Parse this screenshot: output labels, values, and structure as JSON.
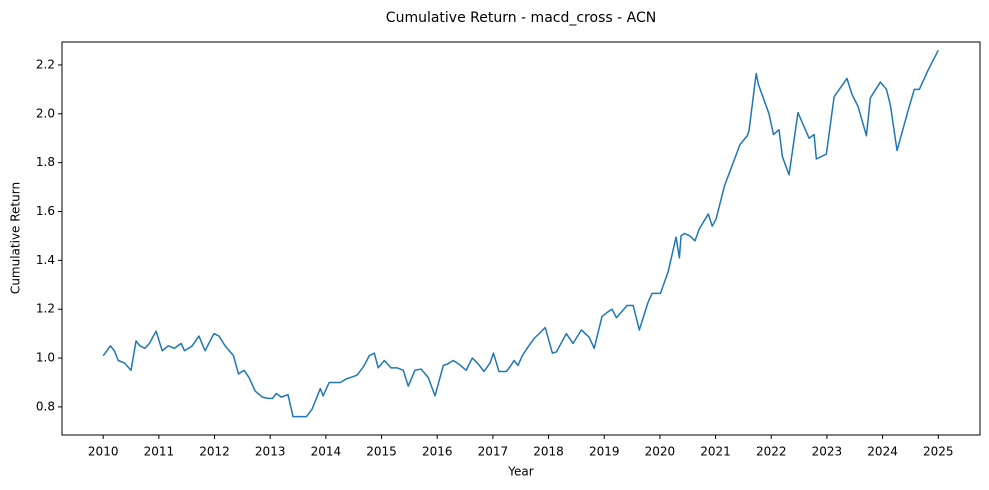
{
  "chart_data": {
    "type": "line",
    "title": "Cumulative Return - macd_cross - ACN",
    "x_label": "Year",
    "y_label": "Cumulative Return",
    "x": [
      2010.0,
      2010.13,
      2010.2,
      2010.27,
      2010.38,
      2010.5,
      2010.59,
      2010.66,
      2010.75,
      2010.83,
      2010.95,
      2011.06,
      2011.17,
      2011.28,
      2011.4,
      2011.46,
      2011.6,
      2011.72,
      2011.83,
      2011.92,
      2011.99,
      2012.08,
      2012.19,
      2012.34,
      2012.43,
      2012.53,
      2012.62,
      2012.73,
      2012.86,
      2012.96,
      2013.04,
      2013.11,
      2013.2,
      2013.32,
      2013.41,
      2013.54,
      2013.65,
      2013.75,
      2013.83,
      2013.9,
      2013.95,
      2014.06,
      2014.19,
      2014.26,
      2014.37,
      2014.44,
      2014.56,
      2014.69,
      2014.78,
      2014.87,
      2014.94,
      2015.05,
      2015.17,
      2015.28,
      2015.39,
      2015.48,
      2015.6,
      2015.71,
      2015.84,
      2015.96,
      2016.11,
      2016.18,
      2016.29,
      2016.39,
      2016.52,
      2016.63,
      2016.74,
      2016.84,
      2016.95,
      2017.01,
      2017.11,
      2017.19,
      2017.24,
      2017.31,
      2017.38,
      2017.45,
      2017.53,
      2017.63,
      2017.74,
      2017.83,
      2017.94,
      2018.07,
      2018.14,
      2018.32,
      2018.44,
      2018.59,
      2018.73,
      2018.82,
      2018.96,
      2019.07,
      2019.14,
      2019.22,
      2019.41,
      2019.52,
      2019.63,
      2019.79,
      2019.86,
      2019.93,
      2020.01,
      2020.15,
      2020.29,
      2020.35,
      2020.38,
      2020.44,
      2020.54,
      2020.63,
      2020.71,
      2020.87,
      2020.94,
      2021.01,
      2021.16,
      2021.35,
      2021.44,
      2021.57,
      2021.6,
      2021.73,
      2021.77,
      2021.96,
      2022.04,
      2022.14,
      2022.2,
      2022.32,
      2022.48,
      2022.68,
      2022.77,
      2022.81,
      2022.99,
      2023.13,
      2023.36,
      2023.45,
      2023.56,
      2023.71,
      2023.78,
      2023.96,
      2024.07,
      2024.14,
      2024.26,
      2024.46,
      2024.57,
      2024.66,
      2024.82,
      2025.0
    ],
    "series": [
      {
        "name": "Cumulative Return",
        "color": "#1f77b4",
        "values": [
          1.009,
          1.05,
          1.03,
          0.99,
          0.98,
          0.95,
          1.07,
          1.05,
          1.04,
          1.06,
          1.11,
          1.03,
          1.05,
          1.04,
          1.06,
          1.03,
          1.05,
          1.09,
          1.03,
          1.07,
          1.1,
          1.09,
          1.05,
          1.01,
          0.935,
          0.95,
          0.92,
          0.865,
          0.84,
          0.835,
          0.835,
          0.855,
          0.84,
          0.85,
          0.76,
          0.76,
          0.76,
          0.79,
          0.835,
          0.875,
          0.845,
          0.9,
          0.9,
          0.9,
          0.915,
          0.92,
          0.93,
          0.97,
          1.01,
          1.02,
          0.96,
          0.99,
          0.96,
          0.96,
          0.95,
          0.885,
          0.95,
          0.955,
          0.92,
          0.845,
          0.97,
          0.975,
          0.99,
          0.975,
          0.95,
          1.0,
          0.975,
          0.945,
          0.98,
          1.02,
          0.945,
          0.945,
          0.945,
          0.965,
          0.99,
          0.97,
          1.01,
          1.045,
          1.08,
          1.1,
          1.125,
          1.02,
          1.025,
          1.1,
          1.06,
          1.115,
          1.085,
          1.04,
          1.17,
          1.19,
          1.2,
          1.165,
          1.215,
          1.215,
          1.115,
          1.23,
          1.265,
          1.265,
          1.265,
          1.355,
          1.495,
          1.41,
          1.5,
          1.51,
          1.5,
          1.48,
          1.53,
          1.59,
          1.54,
          1.57,
          1.705,
          1.82,
          1.875,
          1.91,
          1.93,
          2.165,
          2.12,
          2.0,
          1.915,
          1.935,
          1.825,
          1.75,
          2.005,
          1.9,
          1.915,
          1.815,
          1.835,
          2.07,
          2.145,
          2.08,
          2.03,
          1.91,
          2.065,
          2.13,
          2.1,
          2.035,
          1.85,
          2.015,
          2.1,
          2.1,
          2.18,
          2.26
        ]
      }
    ],
    "xlim": [
      2009.26,
      2025.75
    ],
    "ylim": [
      0.685,
      2.294
    ],
    "xticks": [
      2010,
      2011,
      2012,
      2013,
      2014,
      2015,
      2016,
      2017,
      2018,
      2019,
      2020,
      2021,
      2022,
      2023,
      2024,
      2025
    ],
    "yticks": [
      0.8,
      {
        "value": 1.0,
        "label": "1.0"
      },
      1.2,
      1.4,
      1.6,
      1.8,
      {
        "value": 2.0,
        "label": "2.0"
      },
      2.2
    ],
    "grid": false
  }
}
